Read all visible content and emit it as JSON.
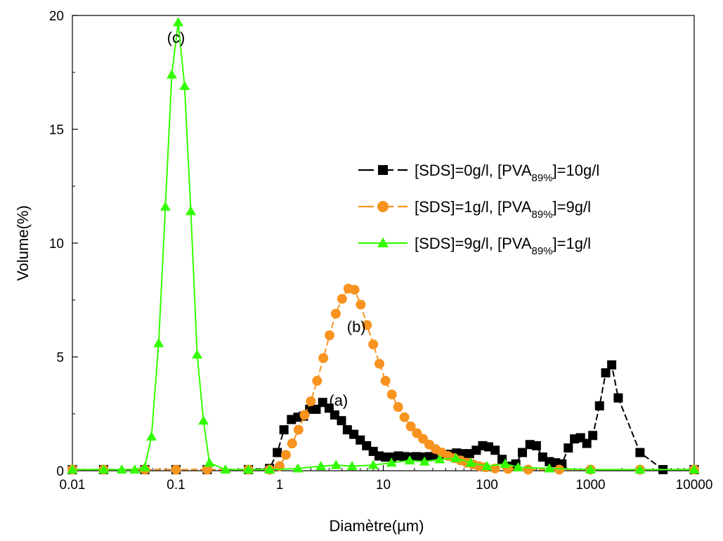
{
  "chart_data": {
    "type": "scatter",
    "title": "",
    "xlabel": "Diamètre(µm)",
    "ylabel": "Volume(%)",
    "x_scale": "log",
    "xlim": [
      0.01,
      10000
    ],
    "ylim": [
      0,
      20
    ],
    "x_ticks": [
      {
        "value": 0.01,
        "label": "0.01"
      },
      {
        "value": 0.1,
        "label": "0.1"
      },
      {
        "value": 1,
        "label": "1"
      },
      {
        "value": 10,
        "label": "10"
      },
      {
        "value": 100,
        "label": "100"
      },
      {
        "value": 1000,
        "label": "1000"
      },
      {
        "value": 10000,
        "label": "10000"
      }
    ],
    "y_ticks": [
      {
        "value": 0,
        "label": "0"
      },
      {
        "value": 5,
        "label": "5"
      },
      {
        "value": 10,
        "label": "10"
      },
      {
        "value": 15,
        "label": "15"
      },
      {
        "value": 20,
        "label": "20"
      }
    ],
    "grid": false,
    "legend_position": "right",
    "series": [
      {
        "id": "a",
        "legend": {
          "prefix": "[SDS]=0g/l, [PVA",
          "sub": "89%",
          "suffix": "]=10g/l"
        },
        "color": "#000000",
        "marker": "square",
        "dash": true,
        "x": [
          0.01,
          0.02,
          0.05,
          0.1,
          0.2,
          0.5,
          0.8,
          0.95,
          1.1,
          1.3,
          1.5,
          1.7,
          1.95,
          2.25,
          2.6,
          3.0,
          3.4,
          3.95,
          4.5,
          5.2,
          6.0,
          6.9,
          8.0,
          9.1,
          10.5,
          12,
          14,
          16,
          18.5,
          21,
          25,
          28,
          33,
          38,
          44,
          51,
          59,
          68,
          79,
          91,
          104,
          120,
          140,
          165,
          190,
          220,
          260,
          300,
          345,
          400,
          460,
          530,
          610,
          700,
          800,
          920,
          1050,
          1220,
          1400,
          1600,
          1850,
          3000,
          5000,
          10000
        ],
        "y": [
          0.05,
          0.05,
          0.05,
          0.05,
          0.05,
          0.05,
          0.1,
          0.8,
          1.8,
          2.25,
          2.35,
          2.4,
          2.7,
          2.7,
          3.0,
          2.75,
          2.45,
          2.2,
          1.8,
          1.6,
          1.35,
          1.1,
          0.85,
          0.65,
          0.6,
          0.6,
          0.65,
          0.62,
          0.6,
          0.62,
          0.6,
          0.62,
          0.65,
          0.7,
          0.72,
          0.78,
          0.75,
          0.75,
          0.9,
          1.1,
          1.05,
          0.9,
          0.5,
          0.2,
          0.3,
          0.8,
          1.15,
          1.1,
          0.6,
          0.4,
          0.35,
          0.3,
          1.0,
          1.4,
          1.45,
          1.2,
          1.55,
          2.85,
          4.3,
          4.65,
          3.2,
          0.8,
          0.05,
          0.05
        ]
      },
      {
        "id": "b",
        "legend": {
          "prefix": "[SDS]=1g/l, [PVA",
          "sub": "89%",
          "suffix": "]=9g/l"
        },
        "color": "#F7931E",
        "marker": "circle",
        "dash": true,
        "x": [
          0.01,
          0.02,
          0.05,
          0.1,
          0.2,
          0.5,
          0.8,
          1.0,
          1.15,
          1.32,
          1.52,
          1.74,
          2.0,
          2.3,
          2.64,
          3.03,
          3.48,
          4.0,
          4.6,
          5.28,
          6.06,
          6.96,
          8.0,
          9.18,
          10.5,
          12.1,
          13.9,
          16.0,
          18.4,
          21.1,
          24.2,
          27.8,
          32.0,
          36.7,
          42.2,
          48.5,
          55.7,
          64.0,
          73.5,
          84.4,
          97,
          120,
          160,
          250,
          500,
          1000,
          3000,
          10000
        ],
        "y": [
          0.05,
          0.05,
          0.05,
          0.05,
          0.05,
          0.05,
          0.05,
          0.2,
          0.7,
          1.2,
          1.8,
          2.45,
          3.05,
          3.95,
          4.95,
          5.95,
          6.9,
          7.55,
          8.0,
          7.95,
          7.3,
          6.4,
          5.55,
          4.7,
          3.95,
          3.35,
          2.8,
          2.35,
          1.95,
          1.65,
          1.4,
          1.15,
          0.95,
          0.8,
          0.65,
          0.55,
          0.45,
          0.35,
          0.28,
          0.2,
          0.15,
          0.1,
          0.08,
          0.05,
          0.05,
          0.05,
          0.05,
          0.05
        ]
      },
      {
        "id": "c",
        "legend": {
          "prefix": "[SDS]=9g/l, [PVA",
          "sub": "89%",
          "suffix": "]=1g/l"
        },
        "color": "#33FF00",
        "marker": "triangle",
        "dash": false,
        "x": [
          0.01,
          0.02,
          0.03,
          0.04,
          0.05,
          0.058,
          0.068,
          0.079,
          0.091,
          0.105,
          0.121,
          0.139,
          0.16,
          0.184,
          0.21,
          0.3,
          0.5,
          0.8,
          1.5,
          2.5,
          3.5,
          5,
          8,
          12,
          18,
          25,
          35,
          50,
          70,
          100,
          150,
          200,
          400,
          1000,
          3000,
          10000
        ],
        "y": [
          0.05,
          0.05,
          0.05,
          0.05,
          0.15,
          1.5,
          5.6,
          11.6,
          17.4,
          19.7,
          16.9,
          11.4,
          5.1,
          2.2,
          0.35,
          0.05,
          0.05,
          0.05,
          0.1,
          0.2,
          0.25,
          0.2,
          0.25,
          0.35,
          0.45,
          0.4,
          0.5,
          0.55,
          0.35,
          0.2,
          0.3,
          0.15,
          0.1,
          0.05,
          0.05,
          0.05
        ]
      }
    ],
    "annotations": [
      {
        "text": "(a)",
        "x": 3.0,
        "y": 2.85
      },
      {
        "text": "(b)",
        "x": 5.5,
        "y": 6.1
      },
      {
        "text": "(c)",
        "x": 0.1,
        "y": 18.8
      }
    ]
  }
}
